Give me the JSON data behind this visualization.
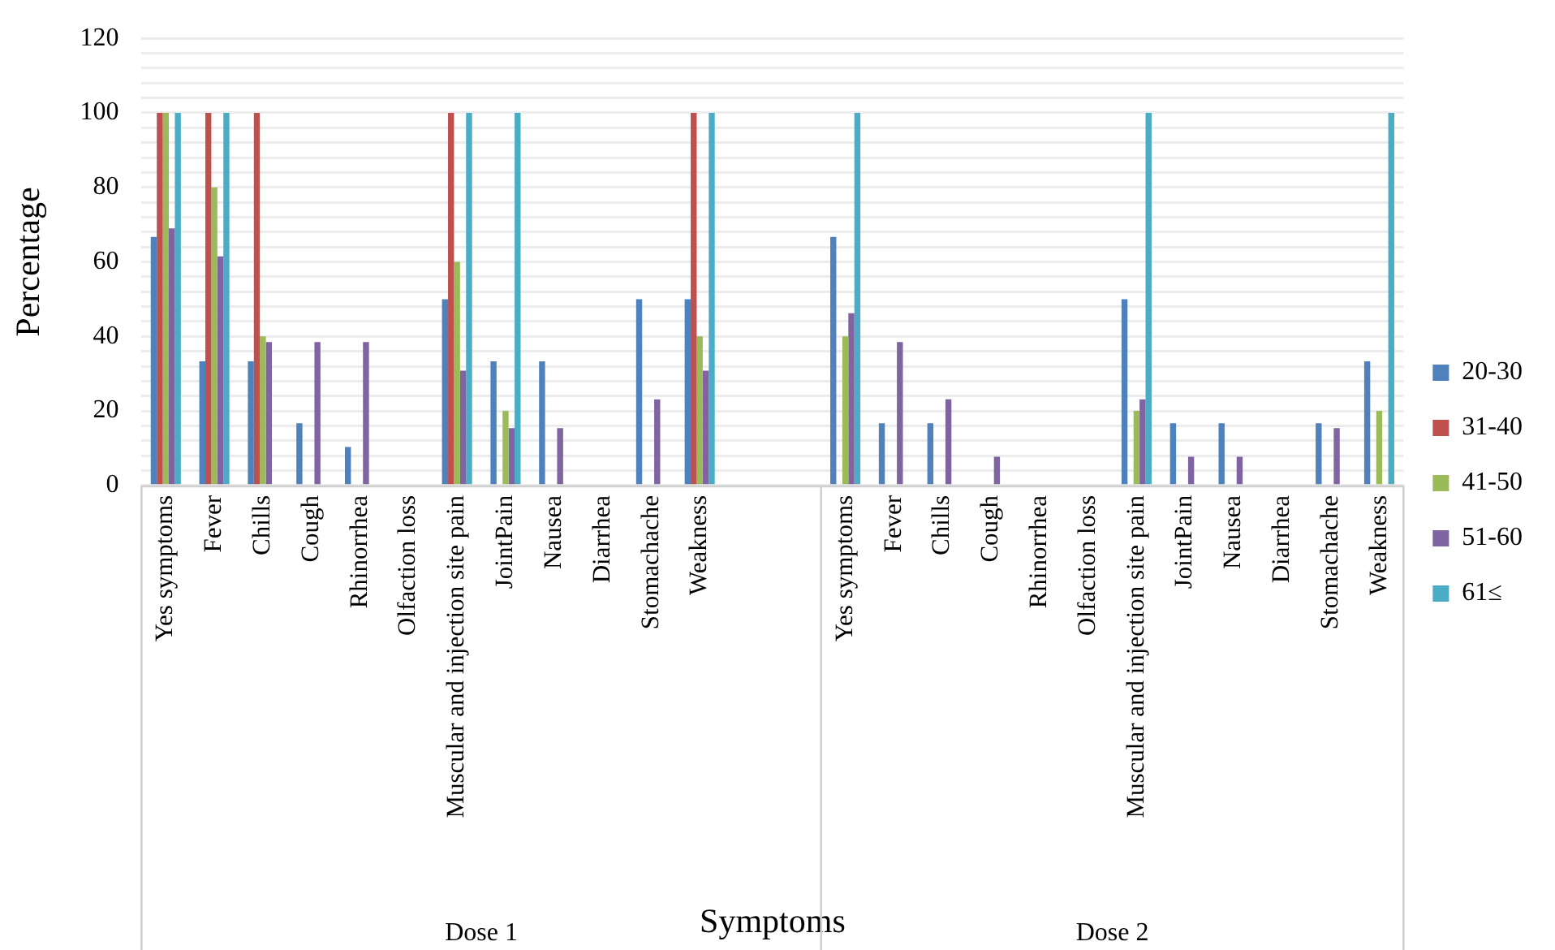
{
  "chart_data": {
    "type": "bar",
    "xlabel": "Symptoms",
    "ylabel": "Percentage",
    "categories": [
      "Yes symptoms",
      "Fever",
      "Chills",
      "Cough",
      "Rhinorrhea",
      "Olfaction loss",
      "Muscular and injection site pain",
      "JointPain",
      "Nausea",
      "Diarrhea",
      "Stomachache",
      "Weakness",
      null,
      null,
      "Yes symptoms",
      "Fever",
      "Chills",
      "Cough",
      "Rhinorrhea",
      "Olfaction loss",
      "Muscular and injection site pain",
      "JointPain",
      "Nausea",
      "Diarrhea",
      "Stomachache",
      "Weakness"
    ],
    "annotations": [
      "Dose 1",
      "Dose 2"
    ],
    "series": [
      {
        "name": "20-30",
        "color": "#4f81bd",
        "values": [
          66.7,
          33.3,
          33.3,
          16.7,
          10.3,
          0,
          50,
          33.3,
          33.3,
          0,
          50,
          50,
          null,
          null,
          66.7,
          16.7,
          16.7,
          0,
          0,
          0,
          50,
          16.7,
          16.7,
          0,
          16.7,
          33.3
        ]
      },
      {
        "name": "31-40",
        "color": "#c0504d",
        "values": [
          100,
          100,
          100,
          0,
          0,
          0,
          100,
          0,
          0,
          0,
          0,
          100,
          null,
          null,
          0,
          0,
          0,
          0,
          0,
          0,
          0,
          0,
          0,
          0,
          0,
          0
        ]
      },
      {
        "name": "41-50",
        "color": "#9bbb59",
        "values": [
          100,
          80,
          40,
          0,
          0,
          0,
          60,
          20,
          0,
          0,
          0,
          40,
          null,
          null,
          40,
          0,
          0,
          0,
          0,
          0,
          20,
          0,
          0,
          0,
          0,
          20
        ]
      },
      {
        "name": "51-60",
        "color": "#8064a2",
        "values": [
          69,
          61.5,
          38.5,
          38.5,
          38.5,
          0,
          30.8,
          15.4,
          15.4,
          0,
          23.1,
          30.8,
          null,
          null,
          46.2,
          38.5,
          23.1,
          7.7,
          0,
          0,
          23.1,
          7.7,
          7.7,
          0,
          15.4,
          0
        ]
      },
      {
        "name": "61≤",
        "color": "#4bacc6",
        "values": [
          100,
          100,
          0,
          0,
          0,
          0,
          100,
          100,
          0,
          0,
          0,
          100,
          null,
          null,
          100,
          0,
          0,
          0,
          0,
          0,
          100,
          0,
          0,
          0,
          0,
          100
        ]
      }
    ],
    "ylim": [
      0,
      120
    ],
    "yticks": [
      0,
      {
        "value": 4,
        "label": null
      },
      {
        "value": 8,
        "label": null
      },
      {
        "value": 12,
        "label": null
      },
      {
        "value": 16,
        "label": null
      },
      20,
      {
        "value": 24,
        "label": null
      },
      {
        "value": 28,
        "label": null
      },
      {
        "value": 32,
        "label": null
      },
      {
        "value": 36,
        "label": null
      },
      40,
      {
        "value": 44,
        "label": null
      },
      {
        "value": 48,
        "label": null
      },
      {
        "value": 52,
        "label": null
      },
      {
        "value": 56,
        "label": null
      },
      60,
      {
        "value": 64,
        "label": null
      },
      {
        "value": 68,
        "label": null
      },
      {
        "value": 72,
        "label": null
      },
      {
        "value": 76,
        "label": null
      },
      80,
      {
        "value": 84,
        "label": null
      },
      {
        "value": 88,
        "label": null
      },
      {
        "value": 92,
        "label": null
      },
      {
        "value": 96,
        "label": null
      },
      100,
      {
        "value": 104,
        "label": null
      },
      {
        "value": 108,
        "label": null
      },
      {
        "value": 112,
        "label": null
      },
      {
        "value": 116,
        "label": null
      },
      120
    ],
    "grid": "y",
    "legend": "right"
  }
}
